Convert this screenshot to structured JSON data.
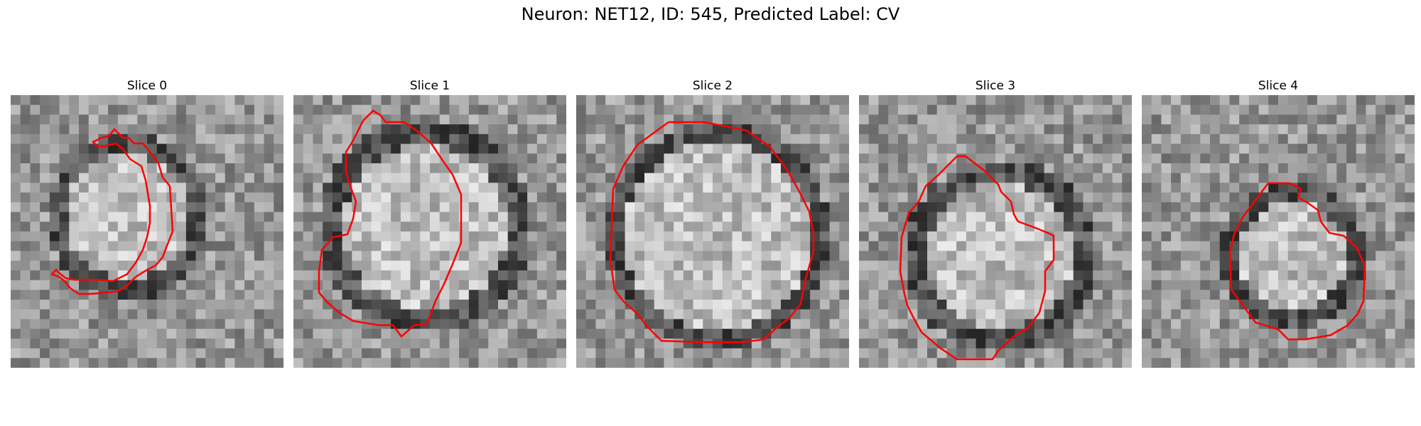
{
  "figure": {
    "title": "Neuron: NET12, ID: 545, Predicted Label: CV",
    "contour_color": "#ff0000",
    "colormap": "gray"
  },
  "panels": [
    {
      "title": "Slice 0",
      "seed": 11,
      "blob": {
        "cx": 11.5,
        "cy": 12,
        "r": 6.5,
        "dark_ring": 8.5
      }
    },
    {
      "title": "Slice 1",
      "seed": 23,
      "blob": {
        "cx": 13,
        "cy": 13,
        "r": 8.5,
        "dark_ring": 11
      }
    },
    {
      "title": "Slice 2",
      "seed": 37,
      "blob": {
        "cx": 14,
        "cy": 14,
        "r": 9.5,
        "dark_ring": 11.5
      }
    },
    {
      "title": "Slice 3",
      "seed": 41,
      "blob": {
        "cx": 14,
        "cy": 16,
        "r": 7.5,
        "dark_ring": 10
      }
    },
    {
      "title": "Slice 4",
      "seed": 53,
      "blob": {
        "cx": 15,
        "cy": 16,
        "r": 5.5,
        "dark_ring": 7.5
      }
    }
  ]
}
